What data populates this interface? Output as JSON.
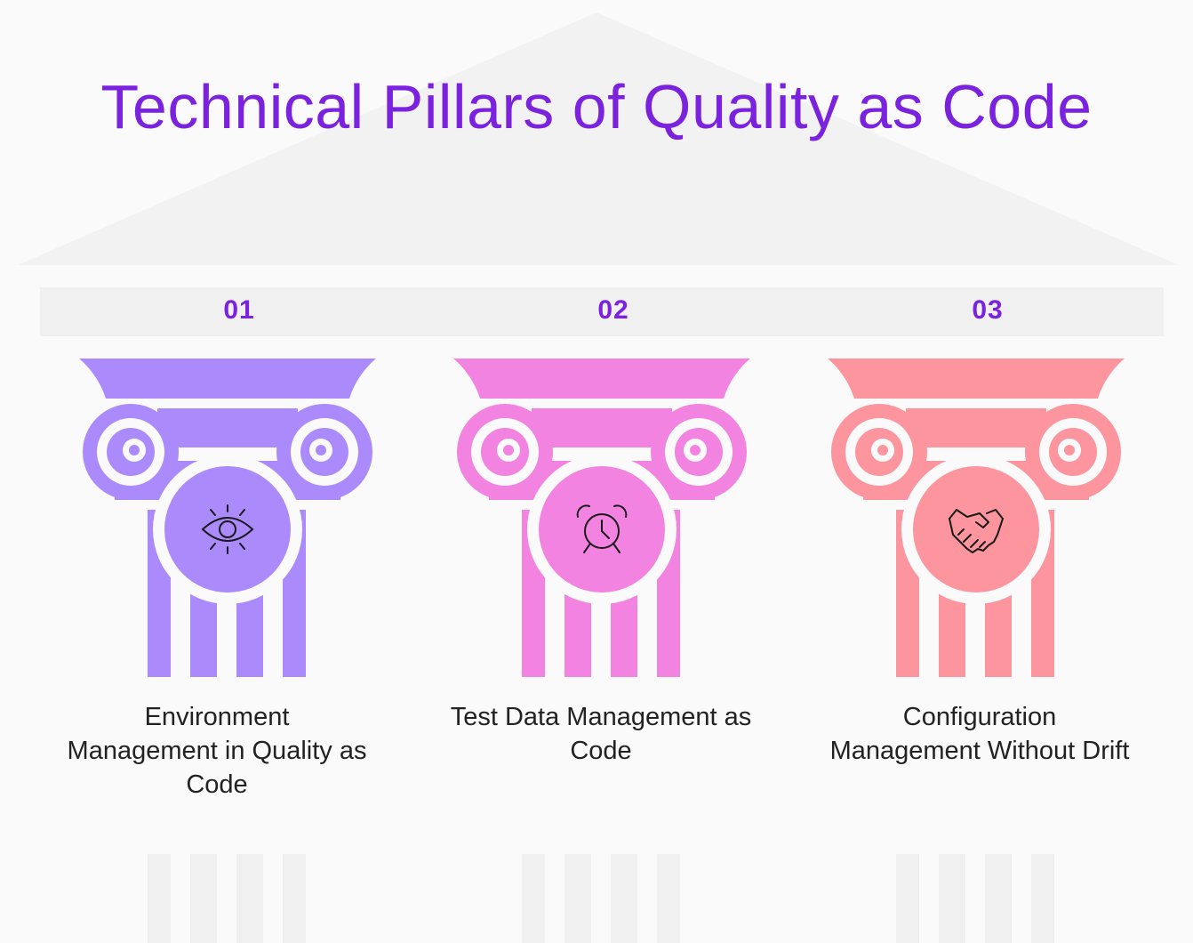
{
  "title": "Technical Pillars of Quality as Code",
  "colors": {
    "title": "#7a22de",
    "background": "#fafafa",
    "roof": "#f2f2f2",
    "label_text": "#222222",
    "icon_stroke": "#1a1a1a"
  },
  "pillars": [
    {
      "number": "01",
      "label": "Environment Management in Quality as Code",
      "color": "#ab8afc",
      "icon": "eye-icon"
    },
    {
      "number": "02",
      "label": "Test Data Management as Code",
      "color": "#f283e0",
      "icon": "alarm-clock-icon"
    },
    {
      "number": "03",
      "label": "Configuration Management Without Drift",
      "color": "#fd959f",
      "icon": "handshake-icon"
    }
  ]
}
